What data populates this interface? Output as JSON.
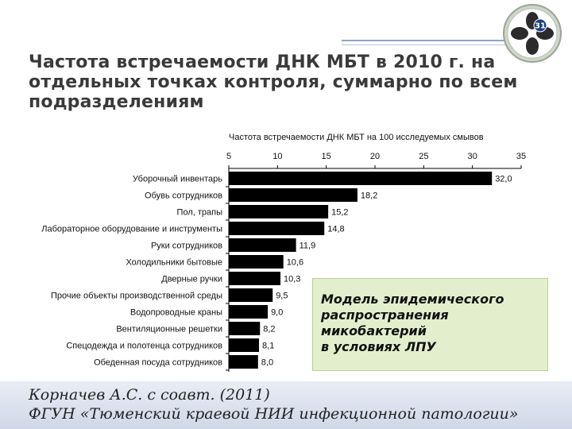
{
  "slide": {
    "title_lines": [
      "Частота встречаемости ДНК МБТ в 2010 г. на",
      "отдельных точках контроля, суммарно по всем",
      "подразделениям"
    ],
    "logo_number": "31"
  },
  "model_box": {
    "lines": [
      "Модель эпидемического",
      "распространения",
      "микобактерий",
      "в условиях ЛПУ"
    ]
  },
  "footer": {
    "line1": "Корначев А.С. с соавт. (2011)",
    "line2": "ФГУН «Тюменский краевой НИИ инфекционной патологии»"
  },
  "colors": {
    "bar": "#000000",
    "model_box_bg": "#e3efcc",
    "footer_bg": "#d6deeb"
  },
  "chart_data": {
    "type": "bar",
    "orientation": "horizontal",
    "title": "Частота встречаемости ДНК МБТ на 100 исследуемых смывов",
    "axis_position": "top",
    "xlim": [
      5,
      35
    ],
    "ticks": [
      5,
      10,
      15,
      20,
      25,
      30,
      35
    ],
    "categories": [
      "Уборочный инвентарь",
      "Обувь сотрудников",
      "Пол, трапы",
      "Лабораторное оборудование и инструменты",
      "Руки сотрудников",
      "Холодильники бытовые",
      "Дверные ручки",
      "Прочие объекты производственной среды",
      "Водопроводные краны",
      "Вентиляционные решетки",
      "Спецодежда и полотенца сотрудников",
      "Обеденная посуда сотрудников"
    ],
    "values": [
      32.0,
      18.2,
      15.2,
      14.8,
      11.9,
      10.6,
      10.3,
      9.5,
      9.0,
      8.2,
      8.1,
      8.0
    ],
    "value_labels": [
      "32,0",
      "18,2",
      "15,2",
      "14,8",
      "11,9",
      "10,6",
      "10,3",
      "9,5",
      "9,0",
      "8,2",
      "8,1",
      "8,0"
    ]
  }
}
